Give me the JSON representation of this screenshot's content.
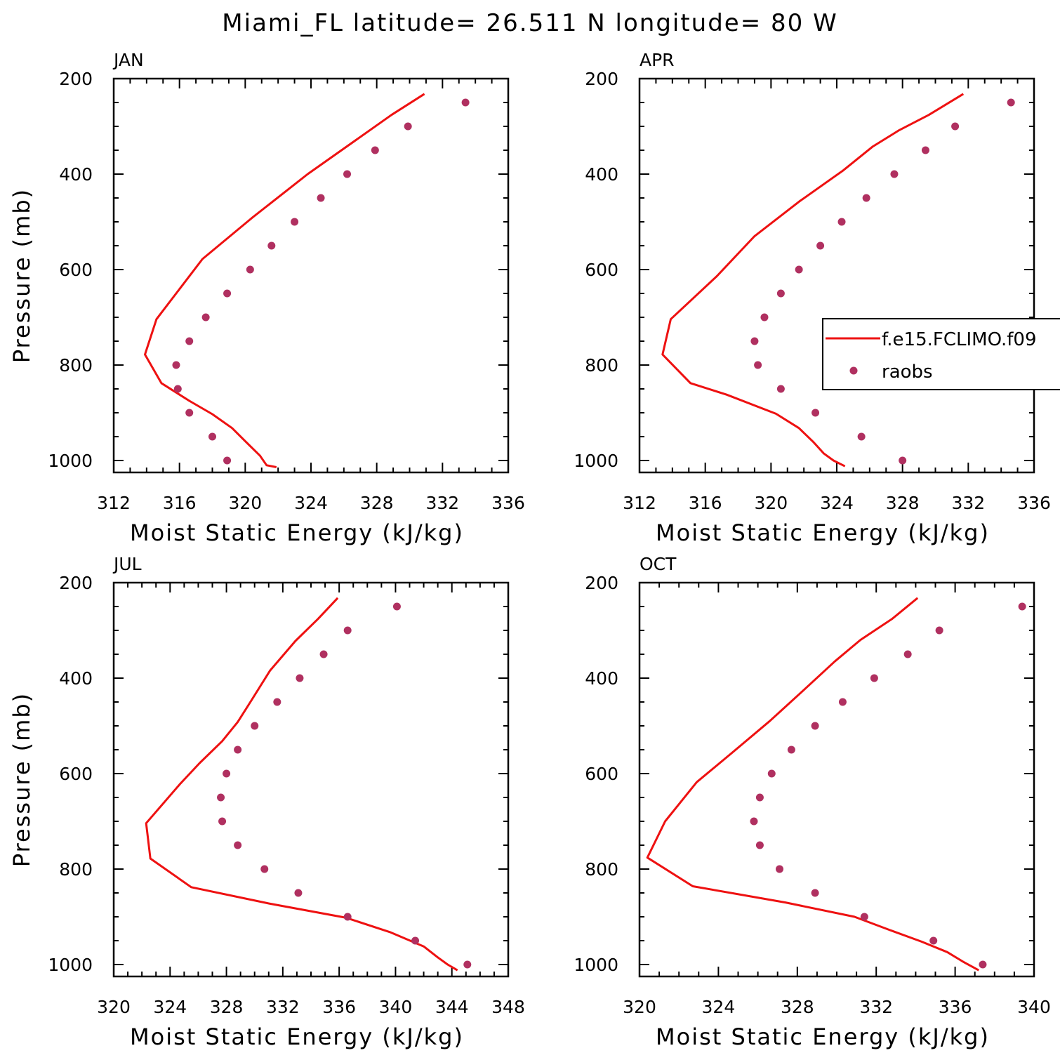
{
  "title": "Miami_FL  latitude= 26.511 N longitude= 80 W",
  "colors": {
    "model": "#ee1111",
    "obs": "#b03060",
    "axis": "#000000"
  },
  "legend": {
    "model_label": "f.e15.FCLIMO.f09",
    "obs_label": "raobs",
    "panel": "APR"
  },
  "chart_data": [
    {
      "type": "line",
      "panel": "JAN",
      "xlabel": "Moist Static Energy (kJ/kg)",
      "ylabel": "Pressure (mb)",
      "xlim": [
        312,
        336
      ],
      "xticks": [
        312,
        316,
        320,
        324,
        328,
        332,
        336
      ],
      "ylim": [
        1025,
        200
      ],
      "yticks": [
        200,
        400,
        600,
        800,
        1000
      ],
      "model": {
        "name": "f.e15.FCLIMO.f09",
        "x": [
          330.9,
          328.9,
          326.8,
          323.8,
          320.4,
          317.4,
          314.6,
          313.9,
          314.9,
          316.6,
          318.0,
          319.2,
          320.1,
          320.9,
          321.3,
          321.9
        ],
        "y": [
          232,
          276,
          327,
          400,
          492,
          578,
          704,
          778,
          838,
          875,
          903,
          932,
          963,
          990,
          1010,
          1014
        ]
      },
      "obs": {
        "name": "raobs",
        "x": [
          333.4,
          329.9,
          327.9,
          326.2,
          324.6,
          323.0,
          321.6,
          320.3,
          318.9,
          317.6,
          316.6,
          315.8,
          315.9,
          316.6,
          318.0,
          318.9
        ],
        "y": [
          250,
          300,
          350,
          400,
          450,
          500,
          550,
          600,
          650,
          700,
          750,
          800,
          850,
          900,
          950,
          1000
        ]
      }
    },
    {
      "type": "line",
      "panel": "APR",
      "xlabel": "Moist Static Energy (kJ/kg)",
      "ylabel": "",
      "xlim": [
        312,
        336
      ],
      "xticks": [
        312,
        316,
        320,
        324,
        328,
        332,
        336
      ],
      "ylim": [
        1025,
        200
      ],
      "yticks": [
        200,
        400,
        600,
        800,
        1000
      ],
      "model": {
        "name": "f.e15.FCLIMO.f09",
        "x": [
          331.7,
          329.6,
          327.8,
          326.2,
          324.4,
          321.7,
          319.0,
          316.7,
          313.9,
          313.4,
          315.1,
          317.3,
          320.3,
          321.7,
          322.6,
          323.2,
          323.8,
          324.5
        ],
        "y": [
          232,
          276,
          308,
          342,
          392,
          458,
          530,
          614,
          704,
          778,
          838,
          862,
          902,
          932,
          962,
          985,
          1000,
          1012
        ]
      },
      "obs": {
        "name": "raobs",
        "x": [
          334.6,
          331.2,
          329.4,
          327.5,
          325.8,
          324.3,
          323.0,
          321.7,
          320.6,
          319.6,
          319.0,
          319.2,
          320.6,
          322.7,
          325.5,
          328.0
        ],
        "y": [
          250,
          300,
          350,
          400,
          450,
          500,
          550,
          600,
          650,
          700,
          750,
          800,
          850,
          900,
          950,
          1000
        ]
      }
    },
    {
      "type": "line",
      "panel": "JUL",
      "xlabel": "Moist Static Energy (kJ/kg)",
      "ylabel": "Pressure (mb)",
      "xlim": [
        320,
        348
      ],
      "xticks": [
        320,
        324,
        328,
        332,
        336,
        340,
        344,
        348
      ],
      "ylim": [
        1025,
        200
      ],
      "yticks": [
        200,
        400,
        600,
        800,
        1000
      ],
      "model": {
        "name": "f.e15.FCLIMO.f09",
        "x": [
          335.9,
          334.5,
          332.9,
          331.1,
          329.7,
          328.8,
          327.7,
          326.1,
          324.7,
          322.3,
          322.6,
          325.5,
          331.0,
          336.5,
          339.6,
          342.0,
          343.0,
          343.7,
          344.4
        ],
        "y": [
          232,
          276,
          322,
          384,
          450,
          492,
          532,
          578,
          622,
          704,
          778,
          838,
          872,
          902,
          932,
          962,
          985,
          1000,
          1012
        ]
      },
      "obs": {
        "name": "raobs",
        "x": [
          340.1,
          336.6,
          334.9,
          333.2,
          331.6,
          330.0,
          328.8,
          328.0,
          327.6,
          327.7,
          328.8,
          330.7,
          333.1,
          336.6,
          341.4,
          345.1
        ],
        "y": [
          250,
          300,
          350,
          400,
          450,
          500,
          550,
          600,
          650,
          700,
          750,
          800,
          850,
          900,
          950,
          1000
        ]
      }
    },
    {
      "type": "line",
      "panel": "OCT",
      "xlabel": "Moist Static Energy (kJ/kg)",
      "ylabel": "",
      "xlim": [
        320,
        340
      ],
      "xticks": [
        320,
        324,
        328,
        332,
        336,
        340
      ],
      "ylim": [
        1025,
        200
      ],
      "yticks": [
        200,
        400,
        600,
        800,
        1000
      ],
      "model": {
        "name": "f.e15.FCLIMO.f09",
        "x": [
          334.1,
          332.8,
          331.2,
          329.9,
          328.3,
          326.6,
          324.7,
          322.9,
          321.3,
          320.4,
          322.7,
          327.4,
          330.9,
          332.7,
          334.3,
          335.6,
          336.4,
          337.2
        ],
        "y": [
          232,
          276,
          320,
          365,
          426,
          490,
          556,
          618,
          700,
          776,
          836,
          870,
          900,
          928,
          952,
          974,
          994,
          1012
        ]
      },
      "obs": {
        "name": "raobs",
        "x": [
          339.4,
          335.2,
          333.6,
          331.9,
          330.3,
          328.9,
          327.7,
          326.7,
          326.1,
          325.8,
          326.1,
          327.1,
          328.9,
          331.4,
          334.9,
          337.4
        ],
        "y": [
          250,
          300,
          350,
          400,
          450,
          500,
          550,
          600,
          650,
          700,
          750,
          800,
          850,
          900,
          950,
          1000
        ]
      }
    }
  ]
}
